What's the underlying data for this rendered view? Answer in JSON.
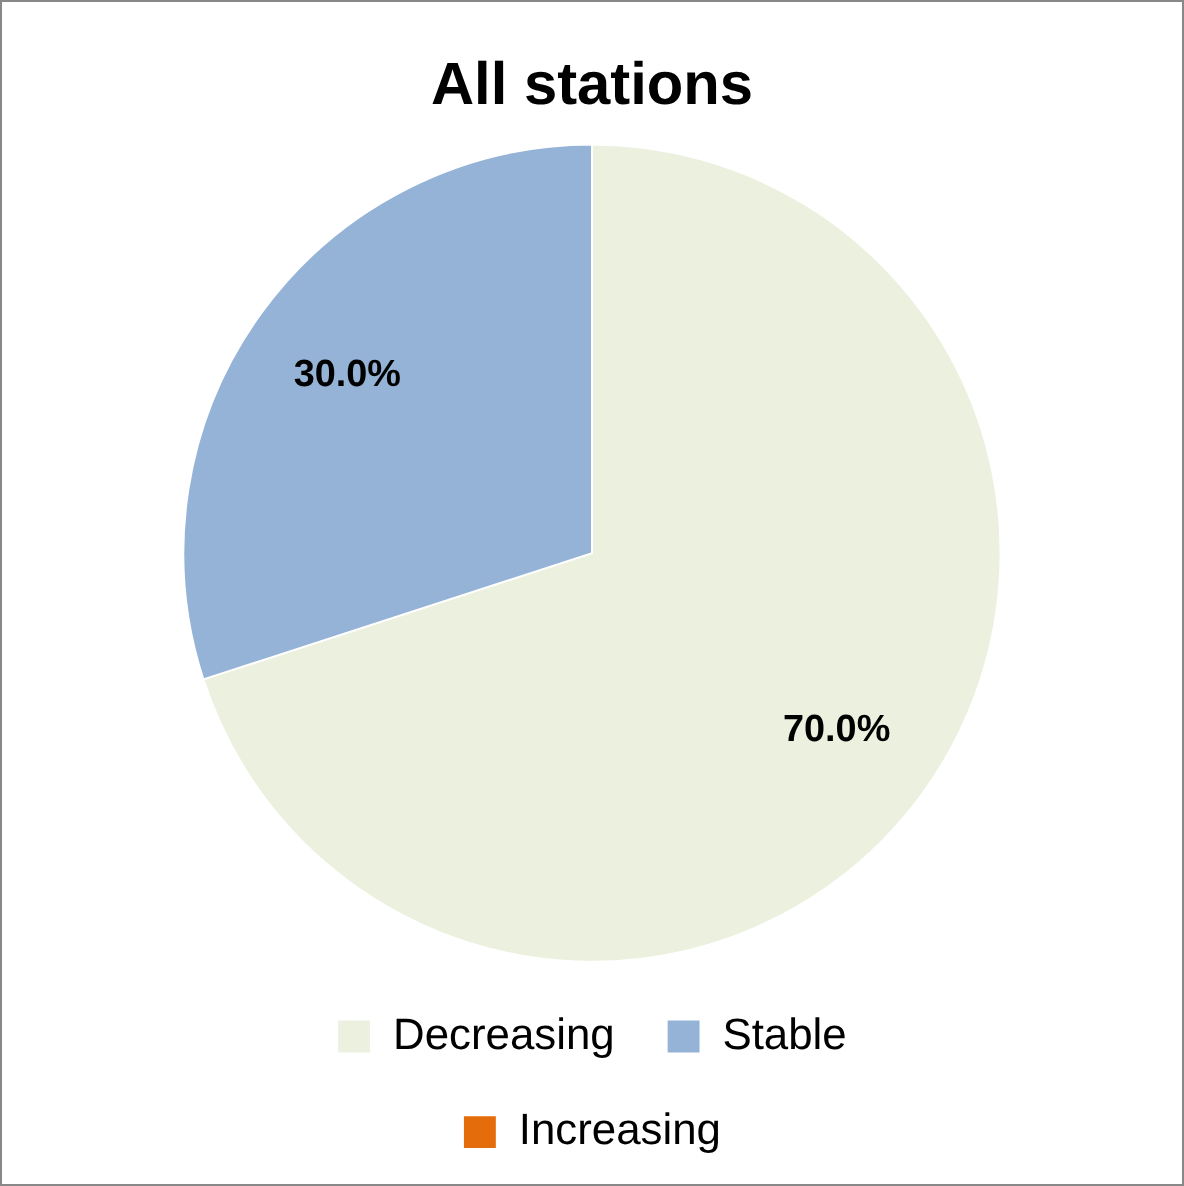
{
  "chart_data": {
    "type": "pie",
    "title": "All stations",
    "categories": [
      "Decreasing",
      "Stable",
      "Increasing"
    ],
    "values": [
      70,
      30,
      0
    ],
    "colors": [
      "#ebf1de",
      "#95b3d7",
      "#e46c0a"
    ],
    "value_labels": [
      "70.0%",
      "30.0%",
      null
    ],
    "legend": "bottom"
  }
}
